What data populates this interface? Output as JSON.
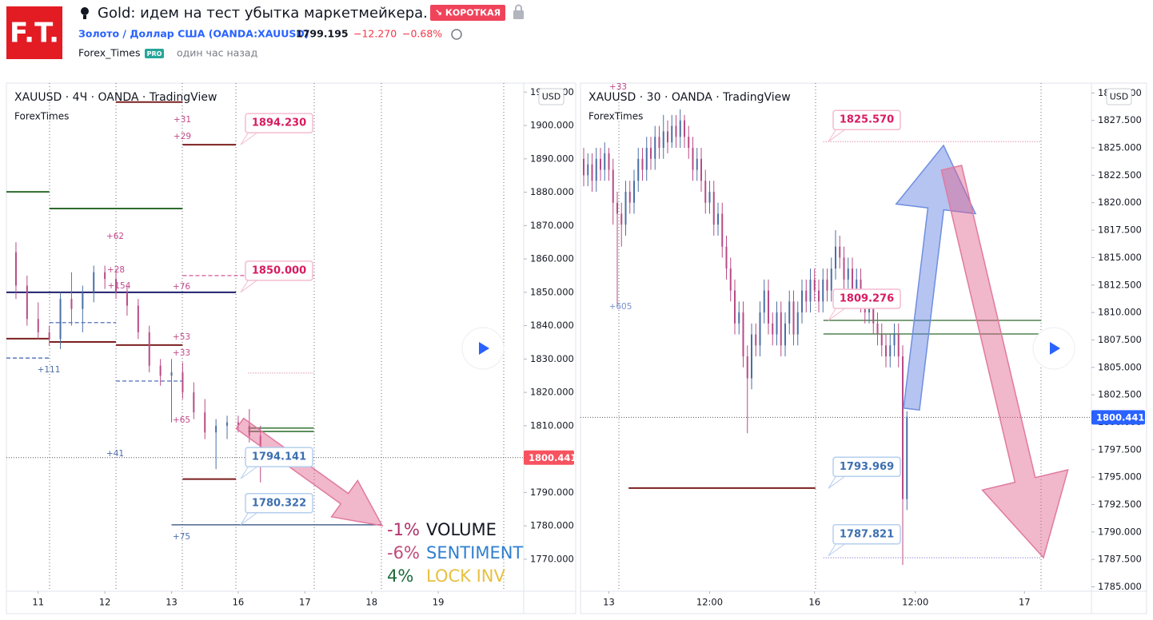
{
  "header": {
    "logo": "F.T.",
    "title": "Gold: идем на тест убытка маркетмейкера.",
    "badge": "↘ КОРОТКАЯ",
    "symbol": "Золото / Доллар США (OANDA:XAUUSD)",
    "price": "1799.195",
    "change": "−12.270",
    "change_pct": "−0.68%",
    "author": "Forex_Times",
    "pro": "PRO",
    "time": "один час назад"
  },
  "chart_data": [
    {
      "type": "candlestick",
      "title": "XAUUSD · 4Ч · OANDA · TradingView",
      "subtitle": "ForexTimes",
      "currency": "USD",
      "up_color": "#4a6fa5",
      "down_color": "#b84b86",
      "xlim": [
        -0.86,
        45.69
      ],
      "ylim": [
        1760.4,
        1912.7
      ],
      "xticks": [
        {
          "value": 2,
          "label": "11"
        },
        {
          "value": 8,
          "label": "12"
        },
        {
          "value": 14,
          "label": "13"
        },
        {
          "value": 20,
          "label": "16"
        },
        {
          "value": 26,
          "label": "17"
        },
        {
          "value": 32,
          "label": "18"
        },
        {
          "value": 38,
          "label": "19"
        }
      ],
      "yticks": [
        {
          "value": 1770,
          "label": "1770.000"
        },
        {
          "value": 1780,
          "label": "1780.000"
        },
        {
          "value": 1790,
          "label": "1790.000"
        },
        {
          "value": 1800,
          "label": "1800.000"
        },
        {
          "value": 1810,
          "label": "1810.000"
        },
        {
          "value": 1820,
          "label": "1820.000"
        },
        {
          "value": 1830,
          "label": "1830.000"
        },
        {
          "value": 1840,
          "label": "1840.000"
        },
        {
          "value": 1850,
          "label": "1850.000"
        },
        {
          "value": 1860,
          "label": "1860.000"
        },
        {
          "value": 1870,
          "label": "1870.000"
        },
        {
          "value": 1880,
          "label": "1880.000"
        },
        {
          "value": 1890,
          "label": "1890.000"
        },
        {
          "value": 1900,
          "label": "1900.000"
        },
        {
          "value": 1910,
          "label": "1910.000"
        }
      ],
      "last_price": 1800.441,
      "last_price_color": "#f7525f",
      "candles": [
        [
          1862,
          1865,
          1848,
          1852
        ],
        [
          1852,
          1855,
          1840,
          1842
        ],
        [
          1842,
          1847,
          1836,
          1838
        ],
        [
          1838,
          1840,
          1834,
          1836
        ],
        [
          1836,
          1850,
          1833,
          1848
        ],
        [
          1848,
          1856,
          1840,
          1845
        ],
        [
          1845,
          1852,
          1838,
          1850
        ],
        [
          1850,
          1858,
          1847,
          1856
        ],
        [
          1856,
          1858,
          1851,
          1854
        ],
        [
          1854,
          1857,
          1848,
          1850
        ],
        [
          1850,
          1852,
          1843,
          1846
        ],
        [
          1846,
          1848,
          1836,
          1838
        ],
        [
          1838,
          1840,
          1826,
          1828
        ],
        [
          1828,
          1830,
          1822,
          1825
        ],
        [
          1825,
          1830,
          1811,
          1826
        ],
        [
          1826,
          1829,
          1818,
          1820
        ],
        [
          1820,
          1823,
          1812,
          1814
        ],
        [
          1814,
          1818,
          1806,
          1808
        ],
        [
          1808,
          1812,
          1797,
          1810
        ],
        [
          1810,
          1813,
          1806,
          1811
        ],
        [
          1811,
          1813,
          1808,
          1810
        ],
        [
          1810,
          1815,
          1805,
          1807
        ],
        [
          1807,
          1810,
          1793,
          1800
        ]
      ],
      "levels": [
        {
          "value": 1907,
          "from": 9,
          "to": 15,
          "color": "#7b1f1f",
          "style": "solid"
        },
        {
          "value": 1894.23,
          "from": 15,
          "to": 19.8,
          "color": "#7b1f1f",
          "style": "solid"
        },
        {
          "value": 1880.1,
          "from": -0.86,
          "to": 3,
          "color": "#2e6b2e",
          "style": "solid"
        },
        {
          "value": 1875.1,
          "from": 3,
          "to": 15,
          "color": "#2e6b2e",
          "style": "solid"
        },
        {
          "value": 1855,
          "from": 15,
          "to": 26.8,
          "color": "#d0408a",
          "style": "dashed"
        },
        {
          "value": 1850,
          "from": -0.86,
          "to": 19.8,
          "color": "#1f1f6e",
          "style": "solid"
        },
        {
          "value": 1840.9,
          "from": 3,
          "to": 9,
          "color": "#3a5fb0",
          "style": "dashed"
        },
        {
          "value": 1836.1,
          "from": -0.86,
          "to": 3,
          "color": "#7b1f1f",
          "style": "solid"
        },
        {
          "value": 1835.1,
          "from": 3,
          "to": 9,
          "color": "#7b1f1f",
          "style": "solid"
        },
        {
          "value": 1834.2,
          "from": 9,
          "to": 15,
          "color": "#7b1f1f",
          "style": "solid"
        },
        {
          "value": 1830.3,
          "from": -0.86,
          "to": 3,
          "color": "#3a5fb0",
          "style": "dashed"
        },
        {
          "value": 1823.4,
          "from": 9,
          "to": 15,
          "color": "#3a5fb0",
          "style": "dashed"
        },
        {
          "value": 1825.8,
          "from": 20.9,
          "to": 26.8,
          "color": "#e080a8",
          "style": "dotted"
        },
        {
          "value": 1809.3,
          "from": 20.9,
          "to": 26.8,
          "color": "#5a8f5a",
          "style": "solid"
        },
        {
          "value": 1808.3,
          "from": 20.9,
          "to": 26.8,
          "color": "#5a8f5a",
          "style": "solid"
        },
        {
          "value": 1794,
          "from": 15,
          "to": 19.8,
          "color": "#7b1f1f",
          "style": "solid"
        },
        {
          "value": 1780.3,
          "from": 14,
          "to": 32.9,
          "color": "#2a4a7a",
          "style": "thin"
        }
      ],
      "annotations": [
        {
          "value": 1894.23,
          "label": "1894.230",
          "color": "#d81b60"
        },
        {
          "value": 1850,
          "label": "1850.000",
          "color": "#d81b60"
        },
        {
          "value": 1794.141,
          "label": "1794.141",
          "color": "#3d6fb0"
        },
        {
          "value": 1780.322,
          "label": "1780.322",
          "color": "#3d6fb0"
        }
      ],
      "notes": [
        "+31",
        "+29",
        "+62",
        "+28",
        "+154",
        "+76",
        "+53",
        "+33",
        "+65",
        "+111",
        "+41",
        "+75"
      ],
      "stats": [
        {
          "figure": "-1%",
          "name": "VOLUME"
        },
        {
          "figure": "-6%",
          "name": "SENTIMENT"
        },
        {
          "figure": "4%",
          "name": "LOCK INV"
        }
      ]
    },
    {
      "type": "candlestick",
      "title": "XAUUSD · 30 · OANDA · TradingView",
      "subtitle": "ForexTimes",
      "currency": "USD",
      "up_color": "#4a6fa5",
      "down_color": "#b84b86",
      "xlim": [
        -0.76,
        120.95
      ],
      "ylim": [
        1784.6,
        1830.9
      ],
      "xticks": [
        {
          "value": 6,
          "label": "13"
        },
        {
          "value": 30,
          "label": "12:00"
        },
        {
          "value": 55,
          "label": "16"
        },
        {
          "value": 79,
          "label": "12:00"
        },
        {
          "value": 105,
          "label": "17"
        }
      ],
      "yticks": [
        {
          "value": 1785,
          "label": "1785.000"
        },
        {
          "value": 1787.5,
          "label": "1787.500"
        },
        {
          "value": 1790,
          "label": "1790.000"
        },
        {
          "value": 1792.5,
          "label": "1792.500"
        },
        {
          "value": 1795,
          "label": "1795.000"
        },
        {
          "value": 1797.5,
          "label": "1797.500"
        },
        {
          "value": 1800,
          "label": "1800.000"
        },
        {
          "value": 1802.5,
          "label": "1802.500"
        },
        {
          "value": 1805,
          "label": "1805.000"
        },
        {
          "value": 1807.5,
          "label": "1807.500"
        },
        {
          "value": 1810,
          "label": "1810.000"
        },
        {
          "value": 1812.5,
          "label": "1812.500"
        },
        {
          "value": 1815,
          "label": "1815.000"
        },
        {
          "value": 1817.5,
          "label": "1817.500"
        },
        {
          "value": 1820,
          "label": "1820.000"
        },
        {
          "value": 1822.5,
          "label": "1822.500"
        },
        {
          "value": 1825,
          "label": "1825.000"
        },
        {
          "value": 1827.5,
          "label": "1827.500"
        },
        {
          "value": 1830,
          "label": "1830.000"
        }
      ],
      "last_price": 1800.441,
      "last_price_color": "#2962ff",
      "candles": [
        [
          1824,
          1825,
          1821.5,
          1822.5
        ],
        [
          1822.5,
          1824.5,
          1821.5,
          1823.5
        ],
        [
          1823.5,
          1824.5,
          1821,
          1822
        ],
        [
          1822,
          1825,
          1821,
          1824
        ],
        [
          1824,
          1825,
          1822,
          1823
        ],
        [
          1823,
          1825.5,
          1822,
          1824.5
        ],
        [
          1824.5,
          1825,
          1822,
          1823
        ],
        [
          1823,
          1824,
          1818,
          1820
        ],
        [
          1820,
          1821,
          1810.5,
          1819
        ],
        [
          1819,
          1820,
          1816,
          1818
        ],
        [
          1818,
          1822,
          1817,
          1821
        ],
        [
          1821,
          1822,
          1819,
          1820
        ],
        [
          1820,
          1823,
          1819,
          1822
        ],
        [
          1822,
          1825,
          1821,
          1824
        ],
        [
          1824,
          1825,
          1822,
          1823
        ],
        [
          1823,
          1826,
          1822,
          1825
        ],
        [
          1825,
          1826,
          1823,
          1824
        ],
        [
          1824,
          1827,
          1823,
          1826
        ],
        [
          1826,
          1827,
          1824,
          1825
        ],
        [
          1825,
          1828,
          1824,
          1826.5
        ],
        [
          1826.5,
          1827.5,
          1824.5,
          1825.5
        ],
        [
          1825.5,
          1828,
          1825,
          1827
        ],
        [
          1827,
          1828,
          1825,
          1826
        ],
        [
          1826,
          1828.5,
          1825,
          1827.5
        ],
        [
          1827.5,
          1828,
          1825,
          1826
        ],
        [
          1826,
          1827,
          1824,
          1825
        ],
        [
          1825,
          1826,
          1822,
          1823
        ],
        [
          1823,
          1825,
          1822,
          1824
        ],
        [
          1824,
          1825,
          1821,
          1822
        ],
        [
          1822,
          1823,
          1819,
          1820
        ],
        [
          1820,
          1822,
          1819,
          1821
        ],
        [
          1821,
          1822,
          1817,
          1818
        ],
        [
          1818,
          1820,
          1817,
          1819
        ],
        [
          1819,
          1820,
          1815,
          1816
        ],
        [
          1816,
          1817,
          1813,
          1814
        ],
        [
          1814,
          1815,
          1811,
          1812
        ],
        [
          1812,
          1813,
          1808,
          1809
        ],
        [
          1809,
          1811,
          1808,
          1810
        ],
        [
          1810,
          1811,
          1805,
          1806
        ],
        [
          1806,
          1807,
          1799,
          1804
        ],
        [
          1804,
          1809,
          1803,
          1808
        ],
        [
          1808,
          1809,
          1806,
          1807
        ],
        [
          1807,
          1811,
          1806,
          1810
        ],
        [
          1810,
          1813,
          1809,
          1812
        ],
        [
          1812,
          1813,
          1808,
          1809
        ],
        [
          1809,
          1810,
          1807,
          1808
        ],
        [
          1808,
          1811,
          1807,
          1810
        ],
        [
          1810,
          1811,
          1806,
          1807
        ],
        [
          1807,
          1810,
          1806,
          1809
        ],
        [
          1809,
          1812,
          1808,
          1811
        ],
        [
          1811,
          1812,
          1807,
          1808
        ],
        [
          1808,
          1811,
          1807,
          1810
        ],
        [
          1810,
          1813,
          1809,
          1812
        ],
        [
          1812,
          1813,
          1810,
          1811
        ],
        [
          1811,
          1814,
          1810,
          1813
        ],
        [
          1813,
          1814,
          1811,
          1812
        ],
        [
          1812,
          1813,
          1810,
          1811
        ],
        [
          1811,
          1814,
          1810,
          1813
        ],
        [
          1813,
          1814,
          1811,
          1812
        ],
        [
          1812,
          1815,
          1811,
          1814
        ],
        [
          1814,
          1817.5,
          1813,
          1816
        ],
        [
          1816,
          1817,
          1814,
          1815
        ],
        [
          1815,
          1816,
          1812,
          1813
        ],
        [
          1813,
          1815,
          1812,
          1814
        ],
        [
          1814,
          1815,
          1811,
          1812
        ],
        [
          1812,
          1814,
          1811,
          1813
        ],
        [
          1813,
          1814,
          1810,
          1811
        ],
        [
          1811,
          1812,
          1809,
          1810
        ],
        [
          1810,
          1812,
          1809,
          1811
        ],
        [
          1811,
          1812,
          1808,
          1809
        ],
        [
          1809,
          1810,
          1807,
          1808
        ],
        [
          1808,
          1809,
          1806,
          1807
        ],
        [
          1807,
          1808,
          1805,
          1806
        ],
        [
          1806,
          1808,
          1805,
          1807
        ],
        [
          1807,
          1809,
          1806,
          1808
        ],
        [
          1808,
          1809,
          1805,
          1806
        ],
        [
          1806,
          1807,
          1787,
          1793
        ],
        [
          1793,
          1801,
          1792,
          1800.5
        ]
      ],
      "levels": [
        {
          "value": 1825.57,
          "from": 57.1,
          "to": 109,
          "color": "#e080a8",
          "style": "dotted"
        },
        {
          "value": 1809.28,
          "from": 57.1,
          "to": 109,
          "color": "#2e6b2e",
          "style": "thin"
        },
        {
          "value": 1808.04,
          "from": 57.1,
          "to": 109,
          "color": "#2e6b2e",
          "style": "thin"
        },
        {
          "value": 1794,
          "from": 10.7,
          "to": 55.2,
          "color": "#7b1f1f",
          "style": "solid"
        },
        {
          "value": 1787.65,
          "from": 57.1,
          "to": 109,
          "color": "#8a7ad0",
          "style": "dotted"
        }
      ],
      "annotations": [
        {
          "value": 1825.57,
          "label": "1825.570",
          "color": "#d81b60"
        },
        {
          "value": 1809.276,
          "label": "1809.276",
          "color": "#d81b60"
        },
        {
          "value": 1793.969,
          "label": "1793.969",
          "color": "#3d6fb0"
        },
        {
          "value": 1787.821,
          "label": "1787.821",
          "color": "#3d6fb0"
        }
      ],
      "notes": [
        "+33",
        "+605"
      ]
    }
  ]
}
